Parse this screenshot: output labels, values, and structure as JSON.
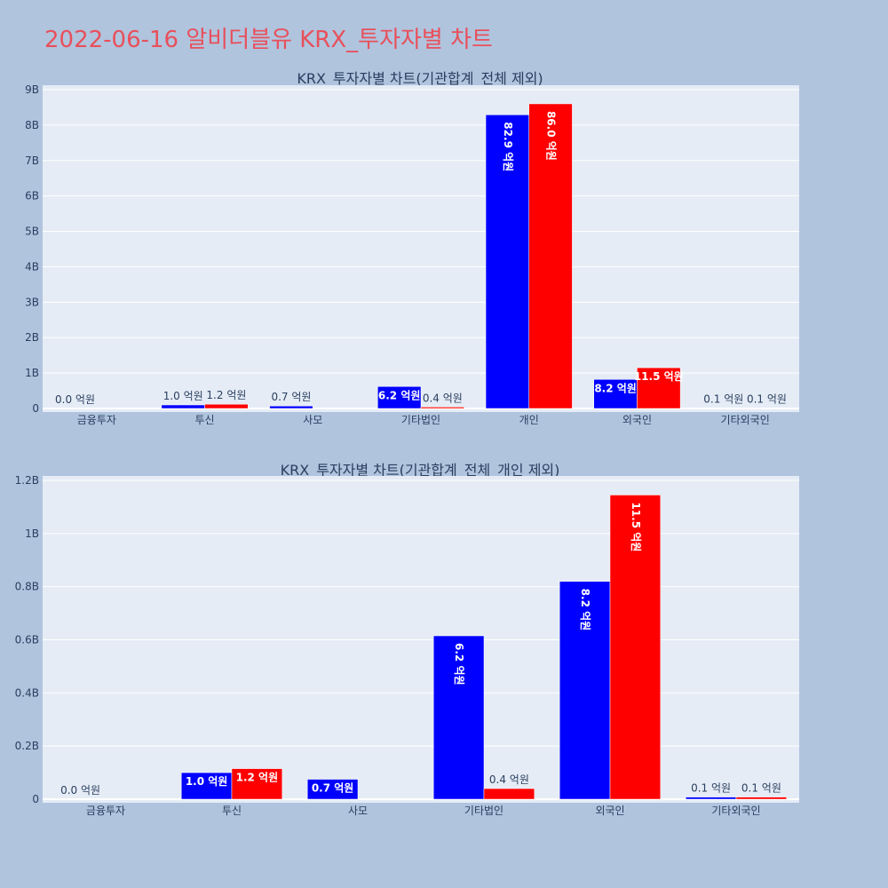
{
  "page": {
    "title": "2022-06-16 알비더블유 KRX_투자자별 차트"
  },
  "colors": {
    "background": "#b0c4de",
    "plot_bg": "#e5ecf6",
    "title": "#e8505b",
    "series_a": "#0000ff",
    "series_b": "#ff0000"
  },
  "chart_data": [
    {
      "type": "bar",
      "title": "KRX_투자자별 차트(기관합계_전체 제외)",
      "categories": [
        "금융투자",
        "투신",
        "사모",
        "기타법인",
        "개인",
        "외국인",
        "기타외국인"
      ],
      "series": [
        {
          "values": [
            0.0,
            0.1,
            0.07,
            0.62,
            8.29,
            0.82,
            0.01
          ],
          "labels": [
            "0.0 억원",
            "1.0 억원",
            "0.7 억원",
            "6.2 억원",
            "82.9 억원",
            "8.2 억원",
            "0.1 억원"
          ]
        },
        {
          "values": [
            0.0,
            0.12,
            0.0,
            0.04,
            8.6,
            1.15,
            0.01
          ],
          "labels": [
            "",
            "1.2 억원",
            "",
            "0.4 억원",
            "86.0 억원",
            "11.5 억원",
            "0.1 억원"
          ]
        }
      ],
      "ylim": [
        0,
        9
      ],
      "yticks": [
        0,
        1,
        2,
        3,
        4,
        5,
        6,
        7,
        8,
        9
      ],
      "ytick_labels": [
        "0",
        "1B",
        "2B",
        "3B",
        "4B",
        "5B",
        "6B",
        "7B",
        "8B",
        "9B"
      ],
      "grid": true,
      "legend": "none"
    },
    {
      "type": "bar",
      "title": "KRX_투자자별 차트(기관합계_전체_개인 제외)",
      "categories": [
        "금융투자",
        "투신",
        "사모",
        "기타법인",
        "외국인",
        "기타외국인"
      ],
      "series": [
        {
          "values": [
            0.0,
            0.1,
            0.075,
            0.615,
            0.82,
            0.008
          ],
          "labels": [
            "0.0 억원",
            "1.0 억원",
            "0.7 억원",
            "6.2 억원",
            "8.2 억원",
            "0.1 억원"
          ]
        },
        {
          "values": [
            0.0,
            0.115,
            0.0,
            0.04,
            1.145,
            0.008
          ],
          "labels": [
            "",
            "1.2 억원",
            "",
            "0.4 억원",
            "11.5 억원",
            "0.1 억원"
          ]
        }
      ],
      "ylim": [
        0,
        1.2
      ],
      "yticks": [
        0,
        0.2,
        0.4,
        0.6,
        0.8,
        1.0,
        1.2
      ],
      "ytick_labels": [
        "0",
        "0.2B",
        "0.4B",
        "0.6B",
        "0.8B",
        "1B",
        "1.2B"
      ],
      "grid": true,
      "legend": "none"
    }
  ]
}
